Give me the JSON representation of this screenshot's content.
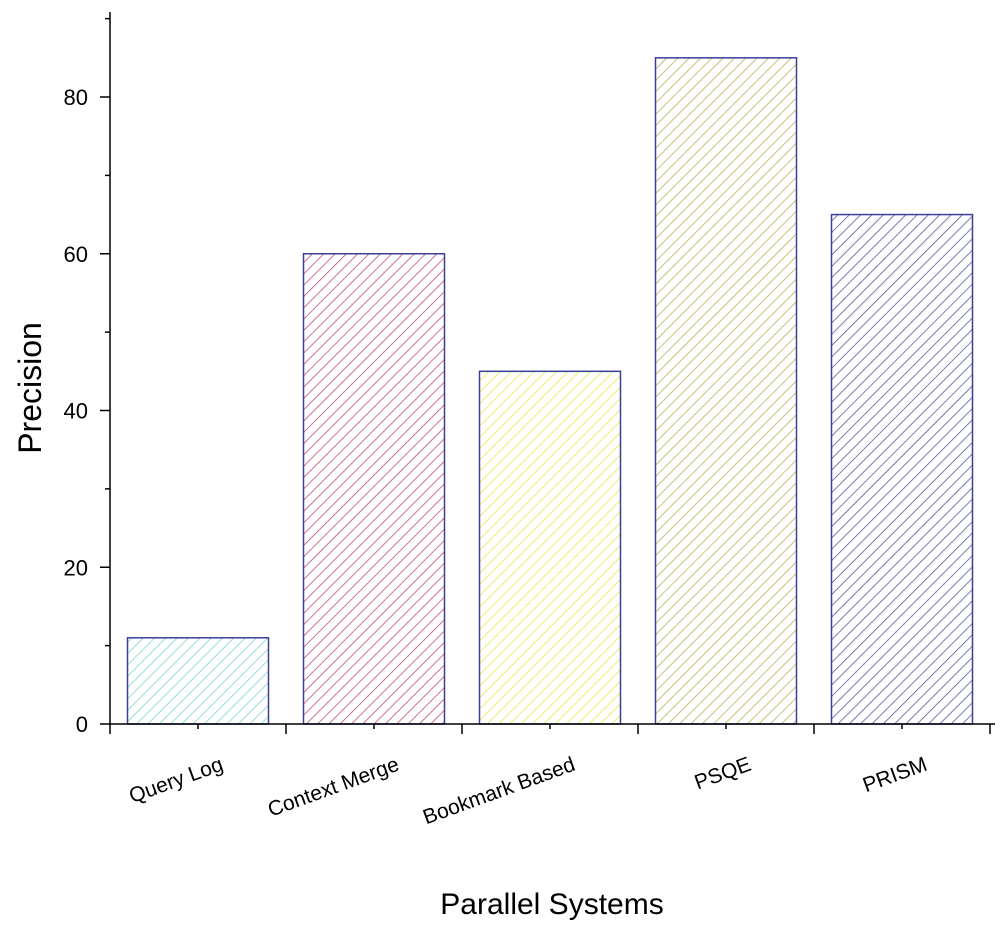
{
  "chart_data": {
    "type": "bar",
    "title": "",
    "xlabel": "Parallel Systems",
    "ylabel": "Precision",
    "categories": [
      "Query Log",
      "Context Merge",
      "Bookmark Based",
      "PSQE",
      "PRISM"
    ],
    "values": [
      11,
      60,
      45,
      85,
      65
    ],
    "ylim": [
      0,
      90
    ],
    "yticks": [
      0,
      20,
      40,
      60,
      80
    ],
    "grid": false,
    "fill_pattern": "diagonal-hatch",
    "colors": {
      "bar_outline": "#3a3f9a",
      "axis": "#000000",
      "hatch": [
        "#7fd6cc",
        "#c0507a",
        "#e8e84a",
        "#b8b45a",
        "#5a5aa0"
      ]
    }
  }
}
